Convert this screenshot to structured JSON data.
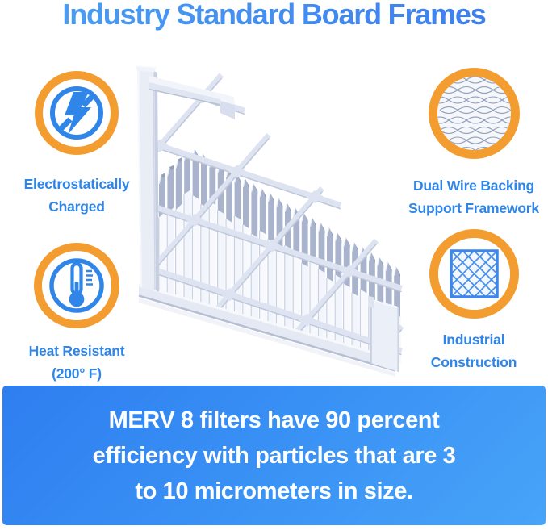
{
  "title": "Industry Standard Board Frames",
  "features": [
    {
      "id": "electrostatically-charged",
      "icon": "lightning-bolt-icon",
      "line1": "Electrostatically",
      "line2": "Charged"
    },
    {
      "id": "dual-wire-backing",
      "icon": "wire-mesh-icon",
      "line1": "Dual Wire Backing",
      "line2": "Support Framework"
    },
    {
      "id": "heat-resistant",
      "icon": "thermometer-icon",
      "line1": "Heat Resistant",
      "line2": "(200° F)"
    },
    {
      "id": "industrial-construction",
      "icon": "lattice-grid-icon",
      "line1": "Industrial",
      "line2": "Construction"
    }
  ],
  "banner": {
    "line1": "MERV 8 filters have 90 percent",
    "line2": "efficiency with particles that are 3",
    "line3": "to 10 micrometers in size."
  },
  "theme": {
    "accent_orange": "#F39C2F",
    "accent_blue": "#2F86E8",
    "title_blue_left": "#4BA0F3",
    "title_blue_right": "#3D7BEE",
    "banner_gradient_start": "#2E7EF0",
    "banner_gradient_end": "#47A4F8",
    "banner_text": "#FFFFFF",
    "background": "#FFFFFF"
  }
}
